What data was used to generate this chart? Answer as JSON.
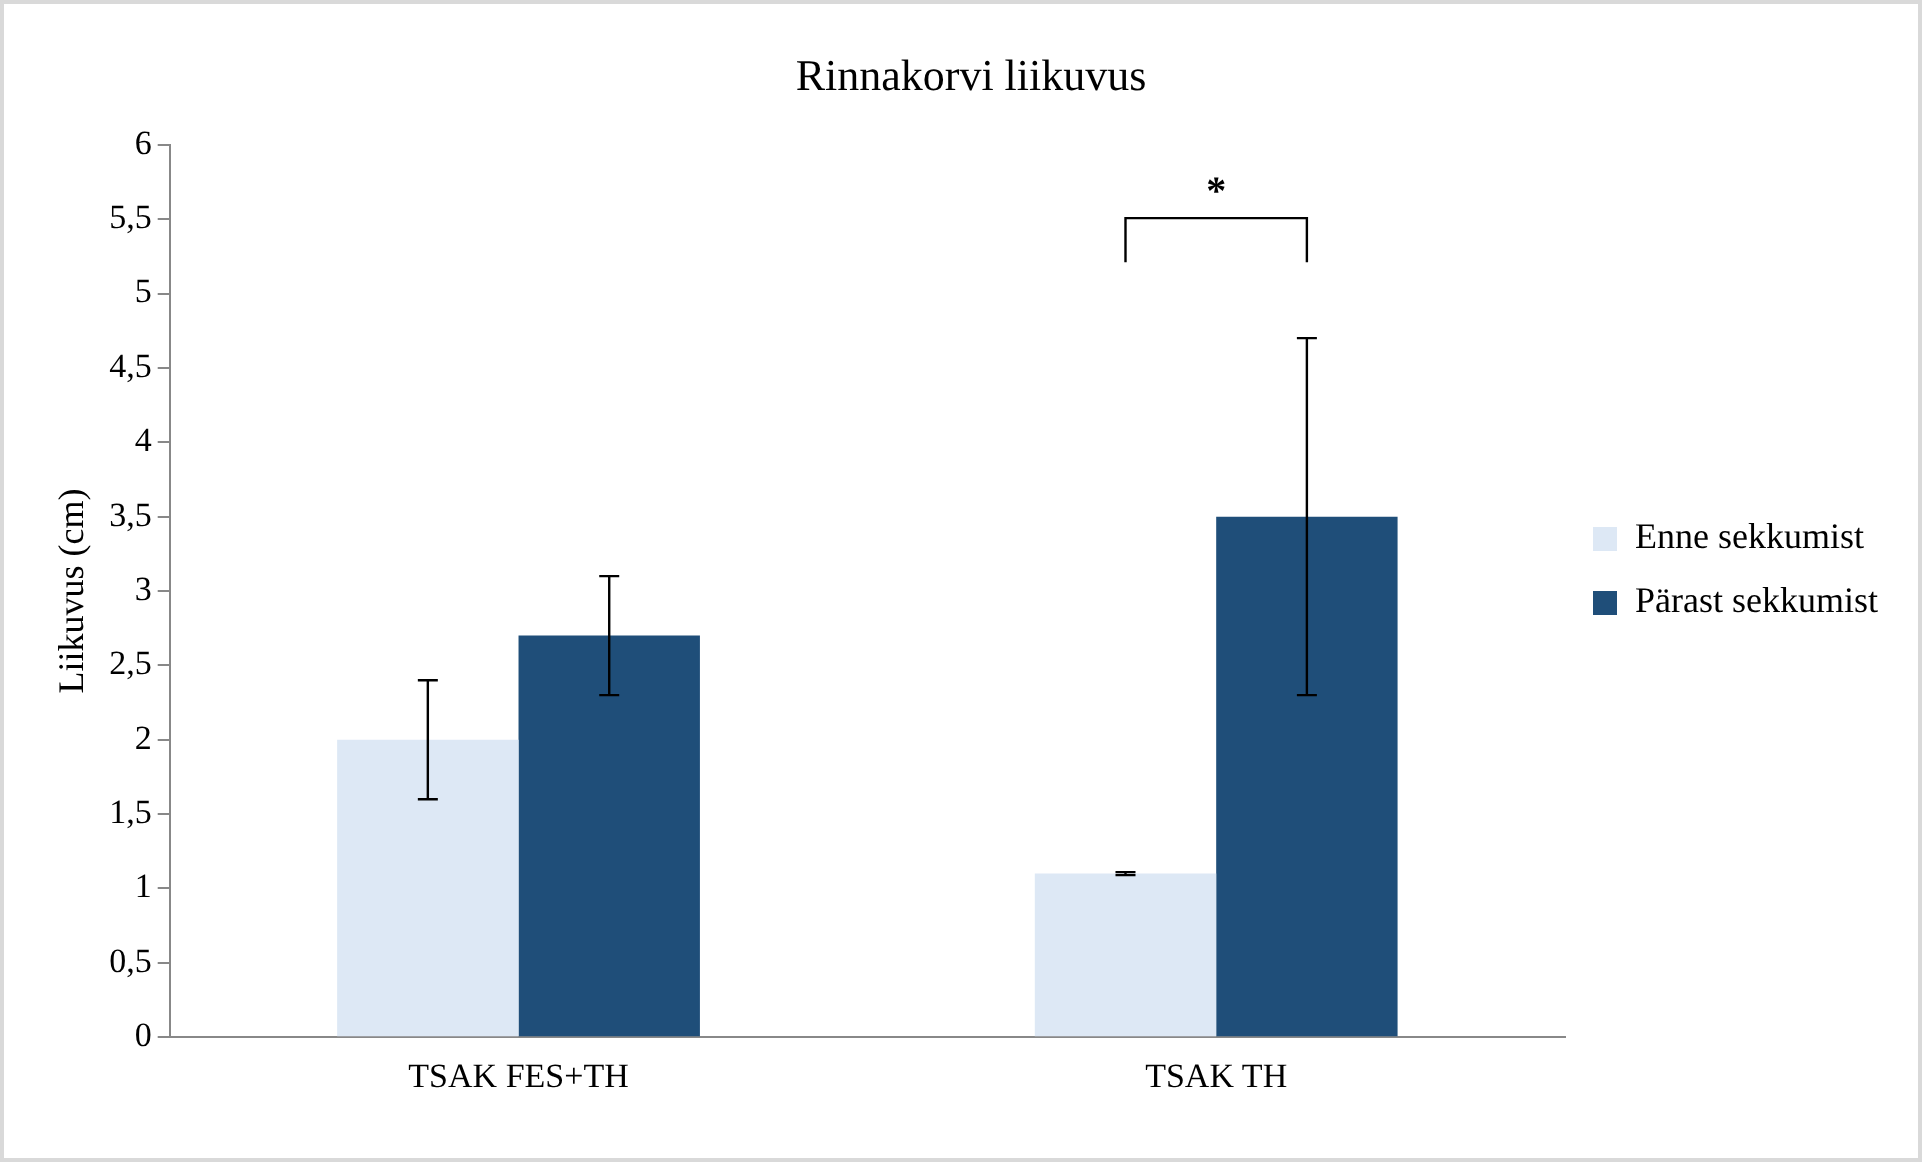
{
  "chart_data": {
    "type": "bar",
    "title": "Rinnakorvi liikuvus",
    "ylabel": "Liikuvus (cm)",
    "categories": [
      "TSAK FES+TH",
      "TSAK TH"
    ],
    "series": [
      {
        "name": "Enne sekkumist",
        "color": "#dde8f5",
        "values": [
          2.0,
          1.1
        ],
        "errors": [
          0.4,
          0.01
        ]
      },
      {
        "name": "Pärast sekkumist",
        "color": "#1f4e79",
        "values": [
          2.7,
          3.5
        ],
        "errors": [
          0.4,
          1.2
        ]
      }
    ],
    "ylim": [
      0,
      6
    ],
    "yticks": [
      0,
      {
        "value": 0.5,
        "label": "0,5"
      },
      1,
      {
        "value": 1.5,
        "label": "1,5"
      },
      2,
      {
        "value": 2.5,
        "label": "2,5"
      },
      3,
      {
        "value": 3.5,
        "label": "3,5"
      },
      4,
      {
        "value": 4.5,
        "label": "4,5"
      },
      5,
      {
        "value": 5.5,
        "label": "5,5"
      },
      6
    ],
    "grid": false,
    "legend": "right",
    "annotations": [
      "*"
    ]
  }
}
